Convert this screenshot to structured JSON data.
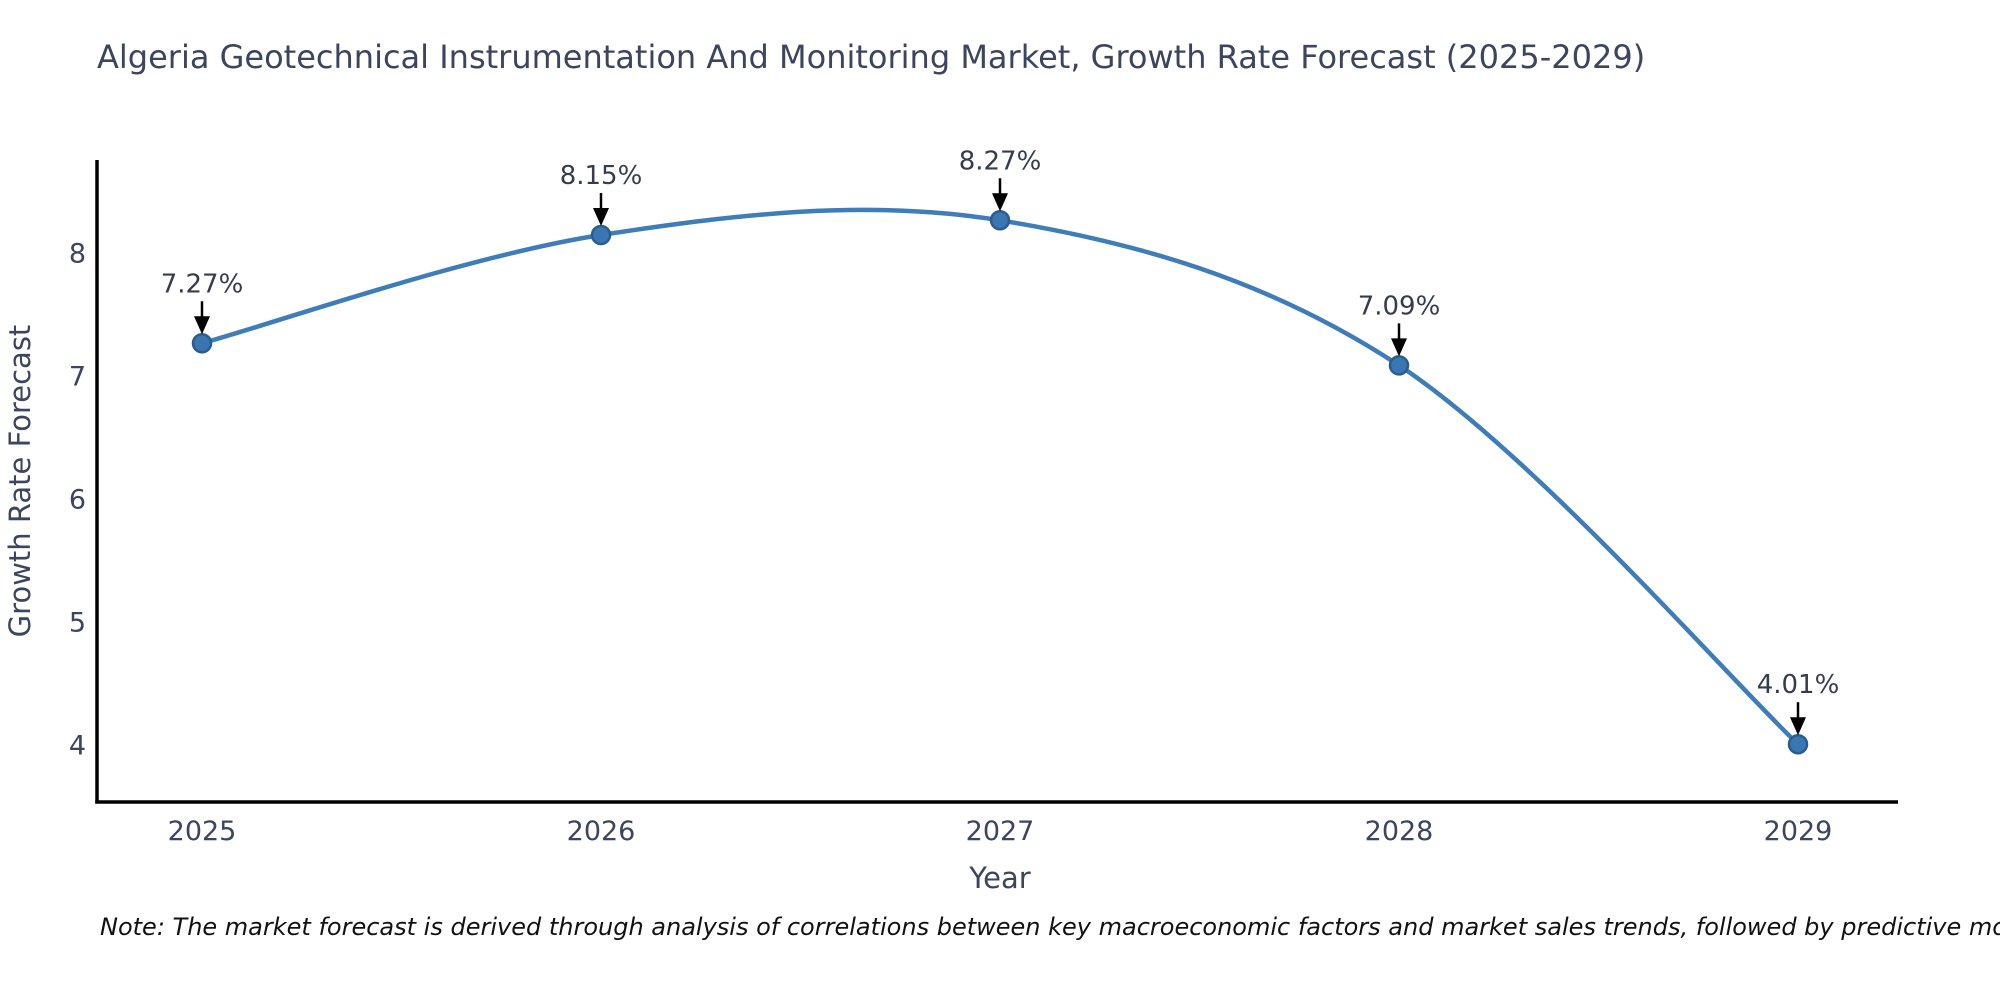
{
  "note": "Note: The market forecast is derived through analysis of correlations between key macroeconomic factors and market sales trends, followed by predictive modeling to project future sales.",
  "chart_data": {
    "type": "line",
    "title": "Algeria Geotechnical Instrumentation And Monitoring Market, Growth Rate Forecast (2025-2029)",
    "xlabel": "Year",
    "ylabel": "Growth Rate Forecast",
    "categories": [
      "2025",
      "2026",
      "2027",
      "2028",
      "2029"
    ],
    "values": [
      7.27,
      8.15,
      8.27,
      7.09,
      4.01
    ],
    "point_labels": [
      "7.27%",
      "8.15%",
      "8.27%",
      "7.09%",
      "4.01%"
    ],
    "y_ticks": [
      4,
      5,
      6,
      7,
      8
    ],
    "ylim": [
      3.54,
      8.76
    ],
    "grid": false,
    "legend": "none",
    "line_style": "smooth-spline",
    "marker": "circle",
    "annotations": "value labels with black arrows pointing down to each marker"
  },
  "colors": {
    "line": "#3e7cba",
    "marker_fill": "#3a76b2",
    "marker_edge": "#2a5d8f",
    "axis": "#000000",
    "text": "#3b4560",
    "annotation_text": "#353c4e",
    "arrow": "#000000",
    "note_text": "#111111",
    "background": "#ffffff"
  }
}
